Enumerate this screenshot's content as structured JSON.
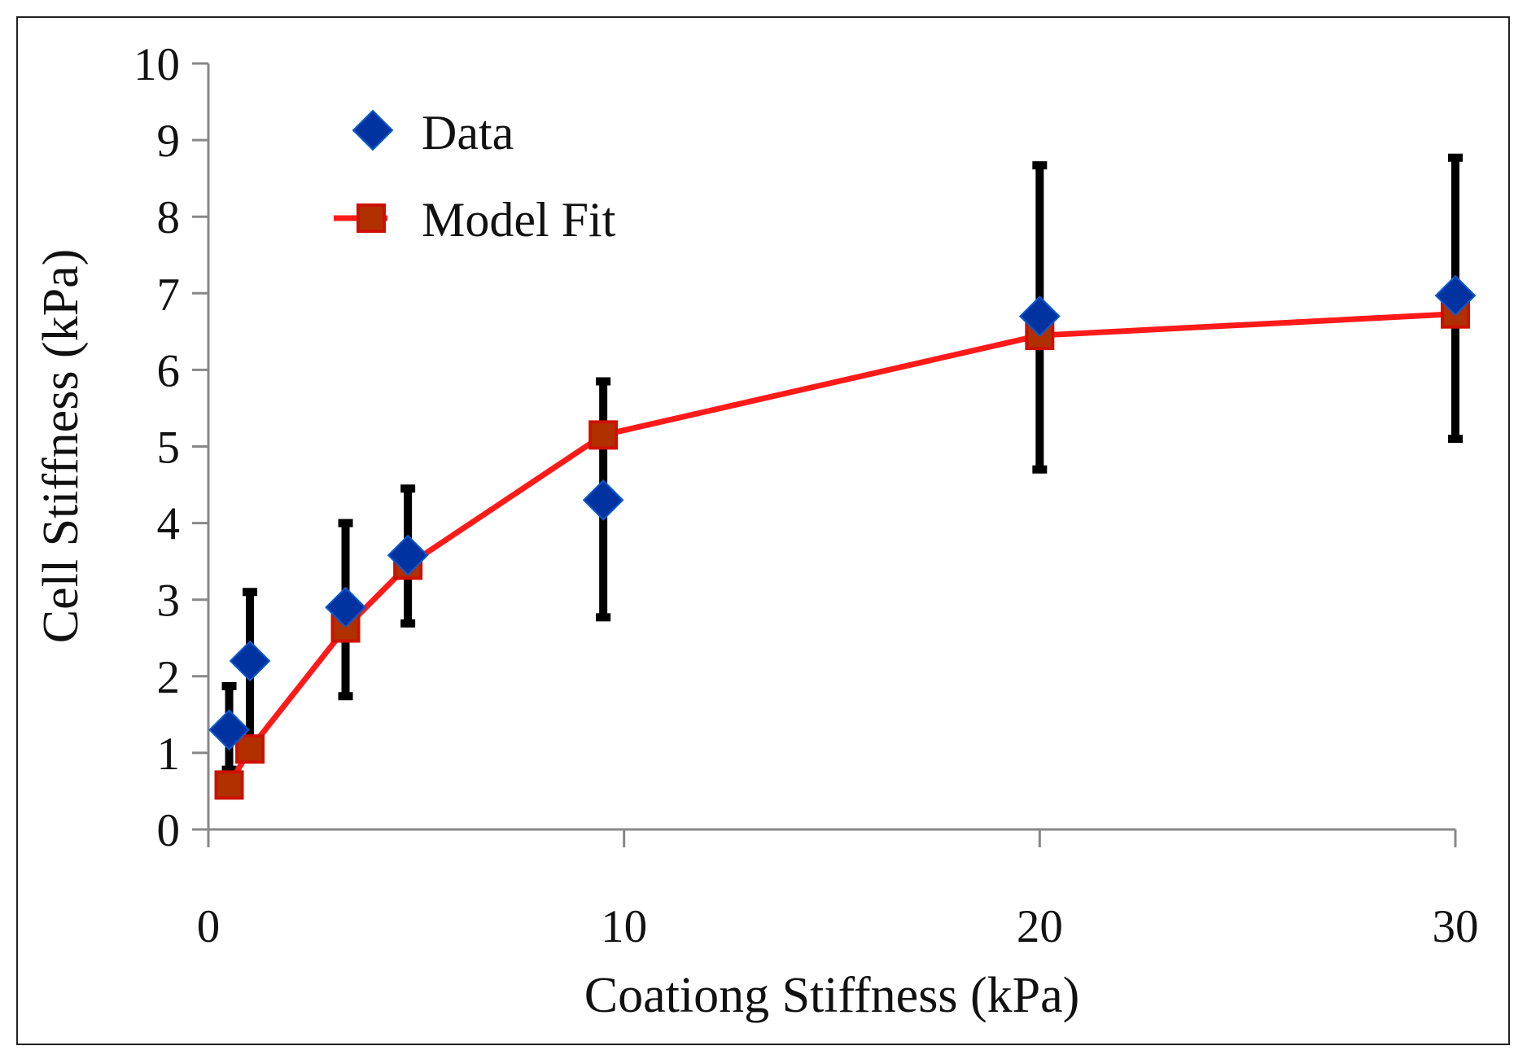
{
  "chart_data": {
    "type": "line",
    "title": "",
    "xlabel": "Coationg Stiffness (kPa)",
    "ylabel": "Cell Stiffness (kPa)",
    "xlim": [
      0,
      30
    ],
    "ylim": [
      0,
      10
    ],
    "x_ticks": [
      0,
      10,
      20,
      30
    ],
    "y_ticks": [
      0,
      1,
      2,
      3,
      4,
      5,
      6,
      7,
      8,
      9,
      10
    ],
    "grid": false,
    "legend_position": "top-left",
    "x": [
      0.5,
      1,
      3.3,
      4.8,
      9.5,
      20,
      30
    ],
    "series": [
      {
        "name": "Data",
        "marker": "diamond",
        "color": "#0033a0",
        "values": [
          1.3,
          2.2,
          2.9,
          3.58,
          4.3,
          6.7,
          6.97
        ],
        "error_low": [
          0.78,
          1.17,
          1.74,
          2.69,
          2.77,
          4.7,
          5.1
        ],
        "error_high": [
          1.87,
          3.1,
          4.0,
          4.45,
          5.85,
          8.67,
          8.77
        ],
        "error_color": "#000000"
      },
      {
        "name": "Model Fit",
        "marker": "square",
        "color": "#ff1a1a",
        "marker_color": "#b03000",
        "values": [
          0.58,
          1.05,
          2.63,
          3.45,
          5.15,
          6.45,
          6.73
        ]
      }
    ]
  }
}
